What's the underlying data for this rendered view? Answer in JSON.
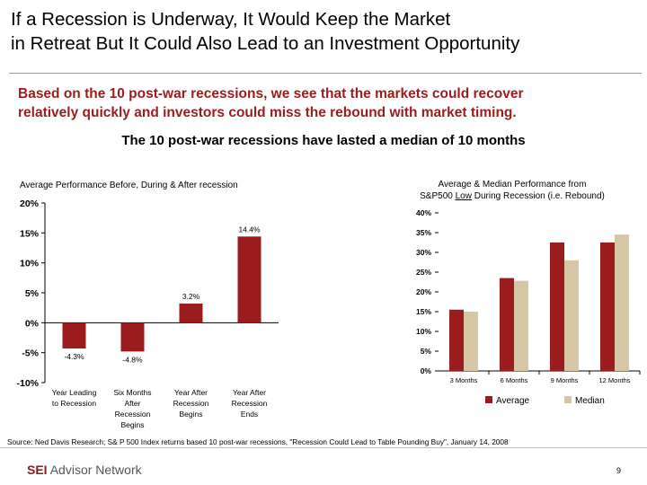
{
  "title_line1": "If a Recession is Underway, It Would Keep the Market",
  "title_line2": "in Retreat But It Could Also Lead to an Investment Opportunity",
  "lead_line1": "Based on the 10 post-war recessions, we see that the markets could recover",
  "lead_line2": "relatively quickly and investors could miss the rebound with market timing.",
  "subhead": "The 10 post-war recessions have lasted a median of 10 months",
  "source": "Source: Ned Davis Research; S& P 500 Index returns based 10 post-war recessions, \"Recession Could Lead to Table Pounding Buy\", January 14, 2008",
  "logo": {
    "brand": "SEI",
    "rest": "Advisor Network"
  },
  "page_number": "9",
  "colors": {
    "bar_dark": "#9b1c1c",
    "bar_light": "#d6c6a4",
    "lead_text": "#9b1c1c"
  },
  "chart_data": [
    {
      "type": "bar",
      "title": "Average Performance Before, During & After  recession",
      "categories": [
        [
          "Year Leading",
          "to Recession"
        ],
        [
          "Six Months",
          "After",
          "Recession",
          "Begins"
        ],
        [
          "Year After",
          "Recession",
          "Begins"
        ],
        [
          "Year After",
          "Recession",
          "Ends"
        ]
      ],
      "series": [
        {
          "values": [
            -4.3,
            -4.8,
            3.2,
            14.4
          ]
        }
      ],
      "data_labels": [
        "-4.3%",
        "-4.8%",
        "3.2%",
        "14.4%"
      ],
      "yticks": [
        -10,
        -5,
        0,
        5,
        10,
        15,
        20
      ],
      "ytick_labels": [
        "-10%",
        "-5%",
        "0%",
        "5%",
        "10%",
        "15%",
        "20%"
      ],
      "ylim": [
        -10,
        20
      ],
      "grid": false,
      "legend": "none"
    },
    {
      "type": "bar",
      "title_line1": "Average & Median Performance from",
      "title_line2_pre": "S&P500 ",
      "title_line2_underline": "Low",
      "title_line2_post": " During Recession (i.e. Rebound)",
      "categories": [
        "3 Months",
        "6 Months",
        "9 Months",
        "12 Months"
      ],
      "series": [
        {
          "name": "Average",
          "values": [
            15.5,
            23.5,
            32.5,
            32.5
          ]
        },
        {
          "name": "Median",
          "values": [
            15.0,
            22.8,
            28.0,
            34.5
          ]
        }
      ],
      "yticks": [
        0,
        5,
        10,
        15,
        20,
        25,
        30,
        35,
        40
      ],
      "ytick_labels": [
        "0%",
        "5%",
        "10%",
        "15%",
        "20%",
        "25%",
        "30%",
        "35%",
        "40%"
      ],
      "ylim": [
        0,
        40
      ],
      "grid": false,
      "legend": "bottom"
    }
  ]
}
